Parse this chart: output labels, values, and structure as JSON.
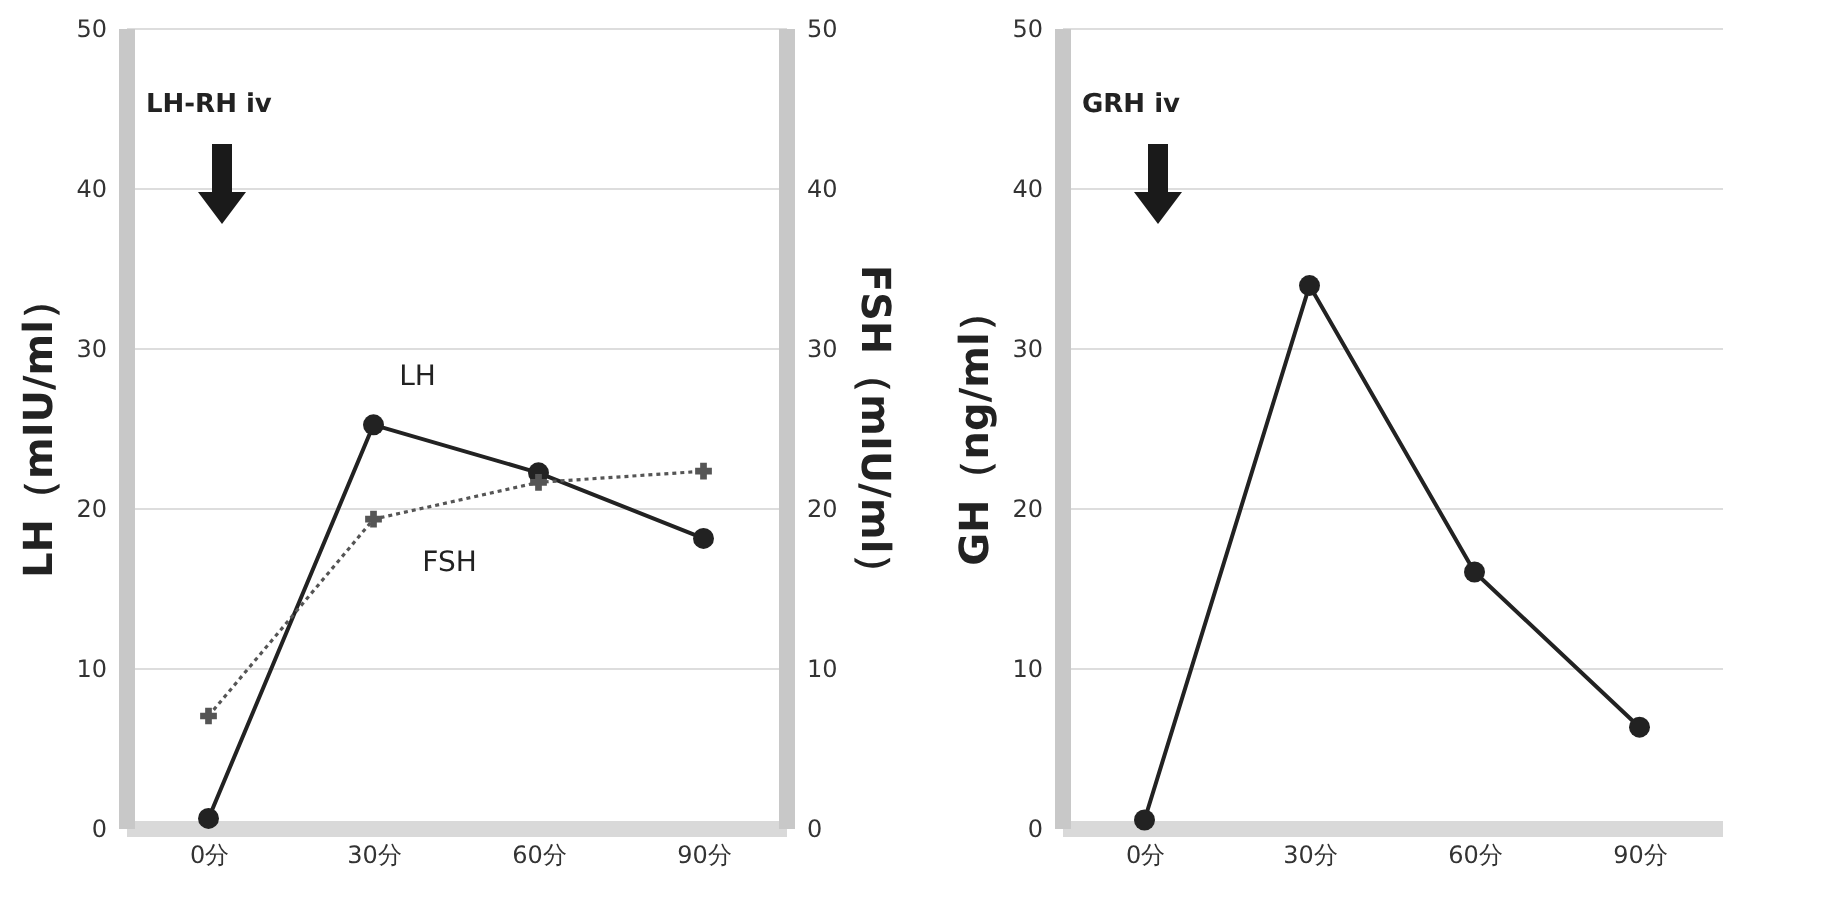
{
  "chart_data": [
    {
      "type": "line",
      "categories": [
        "0分",
        "30分",
        "60分",
        "90分"
      ],
      "ylabel": "LH（mIU/ml）",
      "y2label": "FSH（mIU/ml）",
      "ylim": [
        0,
        50
      ],
      "yticks": [
        0,
        10,
        20,
        30,
        40,
        50
      ],
      "y2lim": [
        0,
        50
      ],
      "y2ticks": [
        0,
        10,
        20,
        30,
        40,
        50
      ],
      "grid": "y",
      "marker": "circle",
      "annotations": [
        "LH-RH iv"
      ],
      "series": [
        {
          "name": "LH",
          "color": "#222222",
          "values": [
            0.6,
            25.2,
            22.2,
            18.1
          ]
        },
        {
          "name": "FSH",
          "color": "#555555",
          "values": [
            7.0,
            19.3,
            21.6,
            22.3
          ],
          "axis": "y2",
          "line_style": "dotted",
          "marker": "cross"
        }
      ]
    },
    {
      "type": "line",
      "categories": [
        "0分",
        "30分",
        "60分",
        "90分"
      ],
      "ylabel": "GH（ng/ml）",
      "ylim": [
        0,
        50
      ],
      "yticks": [
        0,
        10,
        20,
        30,
        40,
        50
      ],
      "grid": "y",
      "marker": "circle",
      "annotations": [
        "GRH iv"
      ],
      "series": [
        {
          "color": "#222222",
          "values": [
            0.5,
            33.9,
            16.0,
            6.3
          ]
        }
      ]
    }
  ]
}
